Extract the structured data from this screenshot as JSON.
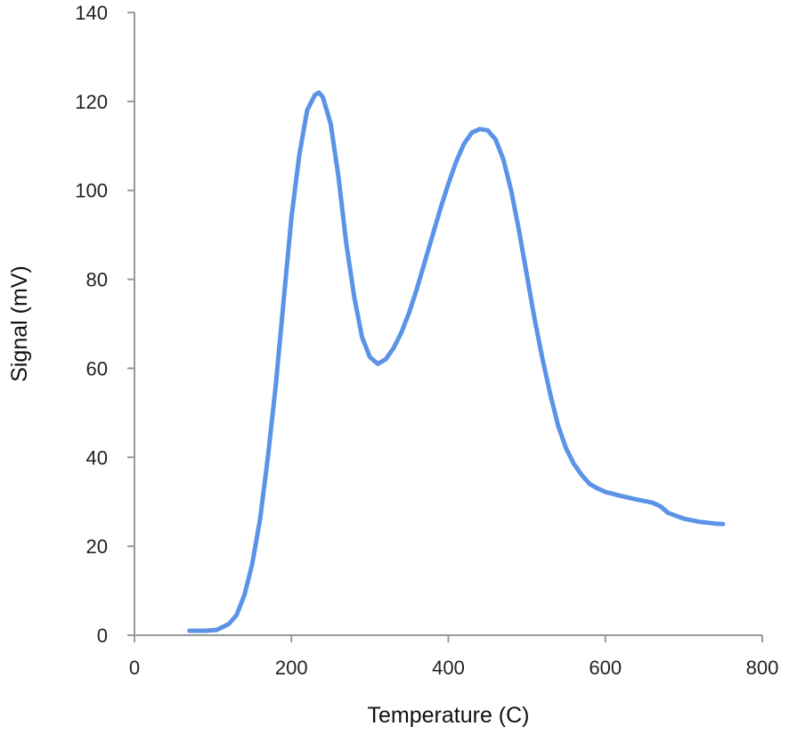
{
  "chart_data": {
    "type": "line",
    "title": "",
    "xlabel": "Temperature (C)",
    "ylabel": "Signal (mV)",
    "xlim": [
      0,
      800
    ],
    "ylim": [
      0,
      140
    ],
    "xticks": [
      0,
      200,
      400,
      600,
      800
    ],
    "yticks": [
      0,
      20,
      40,
      60,
      80,
      100,
      120,
      140
    ],
    "grid": false,
    "legend": "none",
    "series": [
      {
        "color": "#5b93e6",
        "x": [
          70,
          90,
          105,
          120,
          130,
          140,
          150,
          160,
          170,
          180,
          190,
          200,
          210,
          220,
          230,
          235,
          240,
          250,
          260,
          270,
          280,
          290,
          300,
          310,
          320,
          330,
          340,
          350,
          360,
          370,
          380,
          390,
          400,
          410,
          420,
          430,
          440,
          450,
          460,
          470,
          480,
          490,
          500,
          510,
          520,
          530,
          540,
          550,
          560,
          570,
          580,
          590,
          600,
          620,
          640,
          660,
          670,
          680,
          700,
          720,
          740,
          750
        ],
        "y": [
          1.0,
          1.0,
          1.2,
          2.5,
          4.5,
          9,
          16,
          26,
          40,
          56,
          75,
          94,
          108,
          118,
          121.5,
          122,
          121,
          115,
          103,
          88,
          76,
          67,
          62.5,
          61,
          62,
          64.5,
          68,
          72.5,
          78,
          84,
          90,
          96,
          101.5,
          106.5,
          110.5,
          113,
          113.8,
          113.5,
          111.5,
          107,
          100,
          91,
          81,
          71,
          62,
          54,
          47,
          42,
          38.5,
          36,
          34,
          33,
          32.2,
          31.3,
          30.5,
          29.8,
          29,
          27.5,
          26.2,
          25.5,
          25.1,
          25.0
        ]
      }
    ]
  }
}
